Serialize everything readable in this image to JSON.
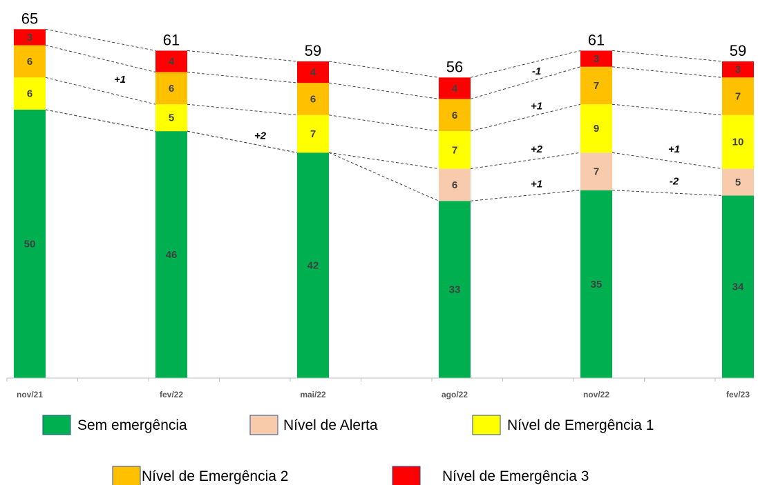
{
  "chart_data": {
    "type": "bar",
    "stacked": true,
    "categories": [
      "nov/21",
      "fev/22",
      "mai/22",
      "ago/22",
      "nov/22",
      "fev/23"
    ],
    "series": [
      {
        "name": "Sem emergência",
        "color": "#00B050",
        "values": [
          50,
          46,
          42,
          33,
          35,
          34
        ]
      },
      {
        "name": "Nível de Alerta",
        "color": "#F8CBAD",
        "values": [
          0,
          0,
          0,
          6,
          7,
          5
        ]
      },
      {
        "name": "Nível de Emergência 1",
        "color": "#FFFF00",
        "values": [
          6,
          5,
          7,
          7,
          9,
          10
        ]
      },
      {
        "name": "Nível de Emergência 2",
        "color": "#FFC000",
        "values": [
          6,
          6,
          6,
          6,
          7,
          7
        ]
      },
      {
        "name": "Nível de Emergência 3",
        "color": "#FF0000",
        "values": [
          3,
          4,
          4,
          4,
          3,
          3
        ]
      }
    ],
    "totals": [
      "65",
      "61",
      "59",
      "56",
      "61",
      "59"
    ],
    "annotations": [
      {
        "text": "+1",
        "between": [
          0,
          1
        ],
        "boundary": 3
      },
      {
        "text": "+2",
        "between": [
          1,
          2
        ],
        "boundary": 1
      },
      {
        "text": "-1",
        "between": [
          3,
          4
        ],
        "boundary": 4
      },
      {
        "text": "+1",
        "between": [
          3,
          4
        ],
        "boundary": 3
      },
      {
        "text": "+2",
        "between": [
          3,
          4
        ],
        "boundary": 2
      },
      {
        "text": "+1",
        "between": [
          3,
          4
        ],
        "boundary": 1
      },
      {
        "text": "+1",
        "between": [
          4,
          5
        ],
        "boundary": 2
      },
      {
        "text": "-2",
        "between": [
          4,
          5
        ],
        "boundary": 1
      }
    ],
    "ylim": [
      0,
      66
    ],
    "grid": false,
    "legend_position": "bottom"
  }
}
